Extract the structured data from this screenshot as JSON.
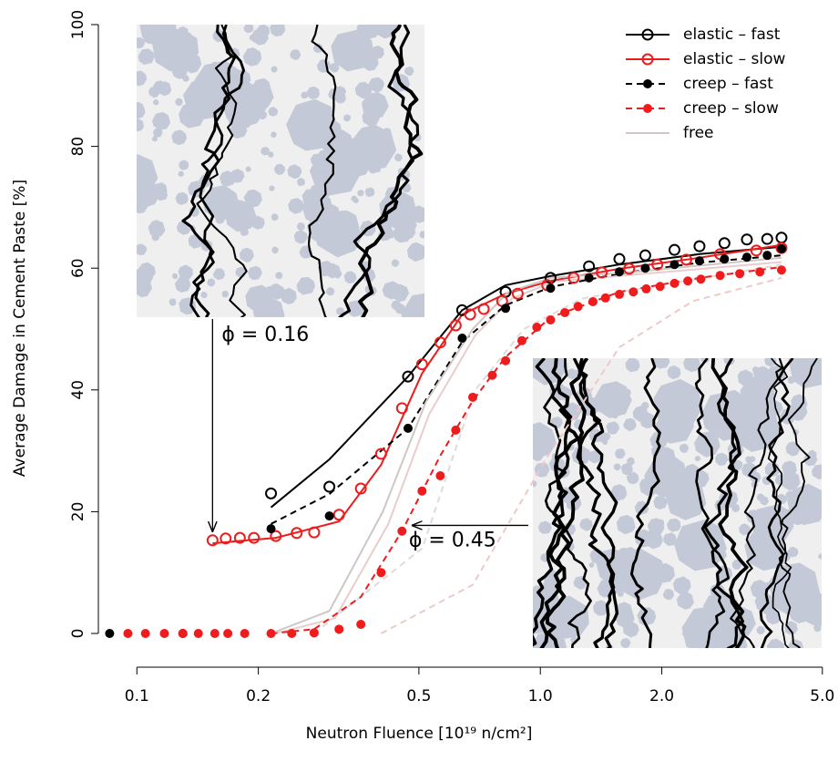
{
  "chart_data": {
    "type": "line",
    "x_label": "Neutron Fluence [10¹⁹ n/cm²]",
    "y_label": "Average Damage in Cement Paste [%]",
    "log_x": true,
    "xlim": [
      0.077,
      5.19
    ],
    "ylim": [
      0,
      100
    ],
    "xticks": [
      0.1,
      0.2,
      0.5,
      {
        "value": 1,
        "label": "1.0"
      },
      {
        "value": 2,
        "label": "2.0"
      },
      {
        "value": 5,
        "label": "5.0"
      }
    ],
    "yticks": [
      0,
      20,
      40,
      60,
      80,
      100
    ],
    "legend": "top-right",
    "annotations": [
      {
        "text": "ϕ = 0.16",
        "x": 0.154,
        "y": 15.3
      },
      {
        "text": "ϕ = 0.45",
        "x": 0.46,
        "y": 17
      }
    ],
    "series": [
      {
        "name": "elastic – fast",
        "color": "#000000",
        "marker": "open",
        "dashed": false,
        "x": [
          0.215,
          0.3,
          0.47,
          0.64,
          0.82,
          1.06,
          1.32,
          1.57,
          1.82,
          2.15,
          2.48,
          2.86,
          3.25,
          3.65,
          3.96
        ],
        "values": [
          23,
          24.1,
          42.2,
          53.1,
          56.1,
          58.4,
          60.3,
          61.5,
          62.1,
          63,
          63.6,
          64.1,
          64.7,
          64.8,
          65
        ],
        "line_x": [
          0.215,
          0.3,
          0.47,
          0.64,
          0.82,
          1.06,
          1.57,
          2.48,
          3.96
        ],
        "line_values": [
          20.7,
          28.6,
          42.2,
          53.1,
          57.2,
          58.7,
          60.6,
          62.3,
          63.5
        ]
      },
      {
        "name": "elastic – slow",
        "color": "#ee1c1c",
        "marker": "open",
        "dashed": false,
        "x": [
          0.154,
          0.166,
          0.18,
          0.195,
          0.221,
          0.249,
          0.275,
          0.317,
          0.359,
          0.403,
          0.454,
          0.509,
          0.565,
          0.617,
          0.67,
          0.724,
          0.804,
          0.879,
          1.04,
          1.21,
          1.42,
          1.66,
          1.95,
          2.3,
          2.79,
          3.43,
          3.96
        ],
        "values": [
          15.3,
          15.6,
          15.7,
          15.7,
          16.0,
          16.5,
          16.6,
          19.5,
          23.8,
          29.5,
          37.0,
          44.2,
          47.8,
          50.6,
          52.4,
          53.3,
          54.6,
          55.8,
          57.2,
          58.4,
          59.3,
          59.9,
          60.6,
          61.4,
          62.3,
          62.9,
          63.3
        ],
        "line_x": [
          0.154,
          0.221,
          0.317,
          0.403,
          0.509,
          0.64,
          0.82,
          1.06,
          1.57,
          2.48,
          3.96
        ],
        "line_values": [
          14.8,
          15.7,
          18.4,
          27.7,
          42.7,
          52.4,
          55.8,
          57.9,
          59.9,
          61.7,
          63.8
        ]
      },
      {
        "name": "creep – fast",
        "color": "#000000",
        "marker": "filled",
        "dashed": true,
        "x": [
          0.0856,
          0.13,
          0.215,
          0.3,
          0.47,
          0.64,
          0.82,
          1.06,
          1.32,
          1.57,
          1.82,
          2.15,
          2.48,
          2.86,
          3.25,
          3.65,
          3.96
        ],
        "values": [
          0,
          0,
          17.2,
          19.3,
          33.7,
          48.5,
          53.4,
          56.7,
          58.4,
          59.4,
          60.0,
          60.6,
          61.2,
          61.5,
          61.8,
          62.1,
          63.2
        ],
        "line_x": [
          0.215,
          0.3,
          0.47,
          0.64,
          0.82,
          1.06,
          1.57,
          2.48,
          3.96
        ],
        "line_values": [
          18,
          22.9,
          33.7,
          47.9,
          53.9,
          56.9,
          59.1,
          60.9,
          62.1
        ]
      },
      {
        "name": "creep – slow",
        "color": "#ee1c1c",
        "marker": "filled",
        "dashed": true,
        "x": [
          0.095,
          0.105,
          0.117,
          0.13,
          0.142,
          0.156,
          0.168,
          0.185,
          0.215,
          0.242,
          0.275,
          0.317,
          0.359,
          0.403,
          0.454,
          0.509,
          0.565,
          0.617,
          0.68,
          0.76,
          0.82,
          0.9,
          0.98,
          1.06,
          1.15,
          1.24,
          1.35,
          1.45,
          1.57,
          1.7,
          1.83,
          1.98,
          2.15,
          2.32,
          2.5,
          2.79,
          3.12,
          3.5,
          3.96
        ],
        "values": [
          0,
          0,
          0,
          0,
          0,
          0,
          0,
          0,
          0,
          0,
          0.1,
          0.7,
          1.5,
          10,
          16.8,
          23.4,
          25.9,
          33.4,
          38.8,
          42.4,
          44.8,
          48.1,
          50.3,
          51.5,
          52.7,
          53.7,
          54.5,
          55.1,
          55.7,
          56.1,
          56.6,
          57.0,
          57.5,
          57.9,
          58.2,
          58.8,
          59.1,
          59.4,
          59.7
        ],
        "line_x": [
          0.215,
          0.275,
          0.359,
          0.454,
          0.565,
          0.68,
          0.82,
          1.06,
          1.57,
          2.48,
          3.96
        ],
        "line_values": [
          0,
          0.7,
          6,
          16.8,
          29.2,
          38.2,
          45.4,
          51.9,
          56.1,
          58.4,
          60.2
        ]
      },
      {
        "name": "free",
        "color": "#cfc6c6",
        "marker": "none",
        "dashed": false,
        "line_x": [
          0.215,
          0.3,
          0.407,
          0.52,
          0.68,
          0.83,
          1.06,
          1.72,
          3.96
        ],
        "line_values": [
          0,
          3.7,
          20,
          38,
          50,
          56,
          58.4,
          59.4,
          61.7
        ]
      },
      {
        "color": "#e9cdcd",
        "marker": "none",
        "dashed": false,
        "line_x": [
          0.22,
          0.31,
          0.42,
          0.53,
          0.69,
          0.85,
          1.08,
          1.75,
          3.96
        ],
        "line_values": [
          0,
          2.5,
          18,
          36,
          49,
          55,
          57.8,
          59,
          61
        ]
      },
      {
        "color": "#dcdcdc",
        "marker": "none",
        "dashed": true,
        "line_x": [
          0.275,
          0.51,
          0.69,
          0.91,
          1.27,
          3.96
        ],
        "line_values": [
          0,
          14,
          40,
          50,
          55,
          60.6
        ]
      },
      {
        "color": "#f0c8c8",
        "marker": "none",
        "dashed": true,
        "line_x": [
          0.403,
          0.68,
          1.04,
          1.57,
          2.39,
          3.96
        ],
        "line_values": [
          0,
          8,
          29,
          47,
          54.6,
          58.4
        ]
      }
    ]
  }
}
